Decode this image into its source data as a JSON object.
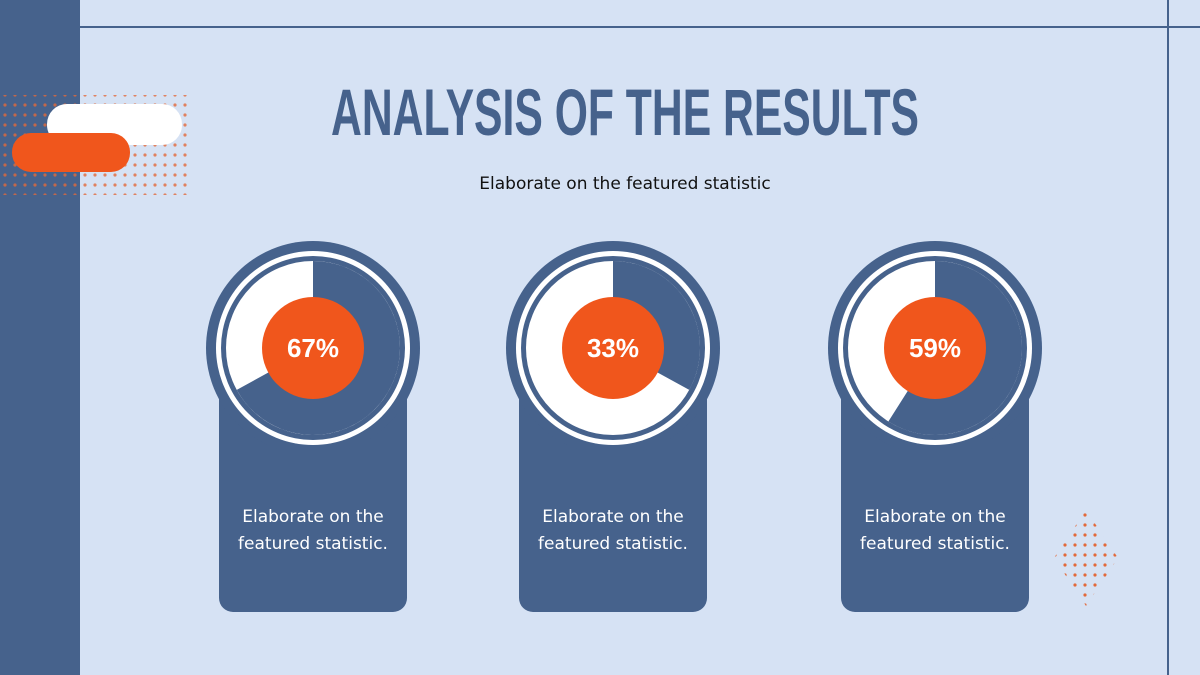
{
  "title": "ANALYSIS OF THE RESULTS",
  "subtitle": "Elaborate on the featured statistic",
  "stats": [
    {
      "value": 67,
      "value_label": "67%",
      "text": "Elaborate on the featured statistic."
    },
    {
      "value": 33,
      "value_label": "33%",
      "text": "Elaborate on the featured statistic."
    },
    {
      "value": 59,
      "value_label": "59%",
      "text": "Elaborate on the featured statistic."
    }
  ]
}
